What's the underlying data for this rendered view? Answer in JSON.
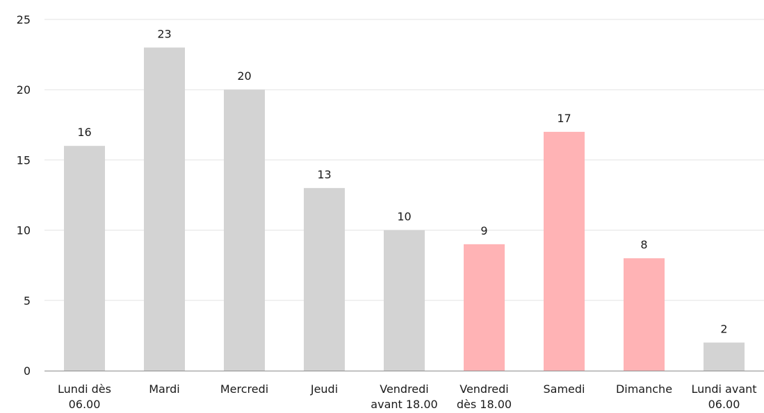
{
  "chart_data": {
    "type": "bar",
    "title": "",
    "xlabel": "",
    "ylabel": "",
    "categories": [
      [
        "Lundi dès",
        "06.00"
      ],
      [
        "Mardi"
      ],
      [
        "Mercredi"
      ],
      [
        "Jeudi"
      ],
      [
        "Vendredi",
        "avant 18.00"
      ],
      [
        "Vendredi",
        "dès 18.00"
      ],
      [
        "Samedi"
      ],
      [
        "Dimanche"
      ],
      [
        "Lundi avant",
        "06.00"
      ]
    ],
    "values": [
      16,
      23,
      20,
      13,
      10,
      9,
      17,
      8,
      2
    ],
    "data_labels": [
      "16",
      "23",
      "20",
      "13",
      "10",
      "9",
      "17",
      "8",
      "2"
    ],
    "highlighted": [
      false,
      false,
      false,
      false,
      false,
      true,
      true,
      true,
      false
    ],
    "ylim": [
      0,
      25
    ],
    "yticks": [
      0,
      5,
      10,
      15,
      20,
      25
    ],
    "ytick_labels": [
      "0",
      "5",
      "10",
      "15",
      "20",
      "25"
    ],
    "grid": true,
    "legend": "none",
    "colors": {
      "default_bar": "#d3d3d3",
      "highlight_bar": "#ffb3b5",
      "grid": "#e3e3e3",
      "axis": "#8c8c8c",
      "text": "#1a1a1a"
    }
  }
}
